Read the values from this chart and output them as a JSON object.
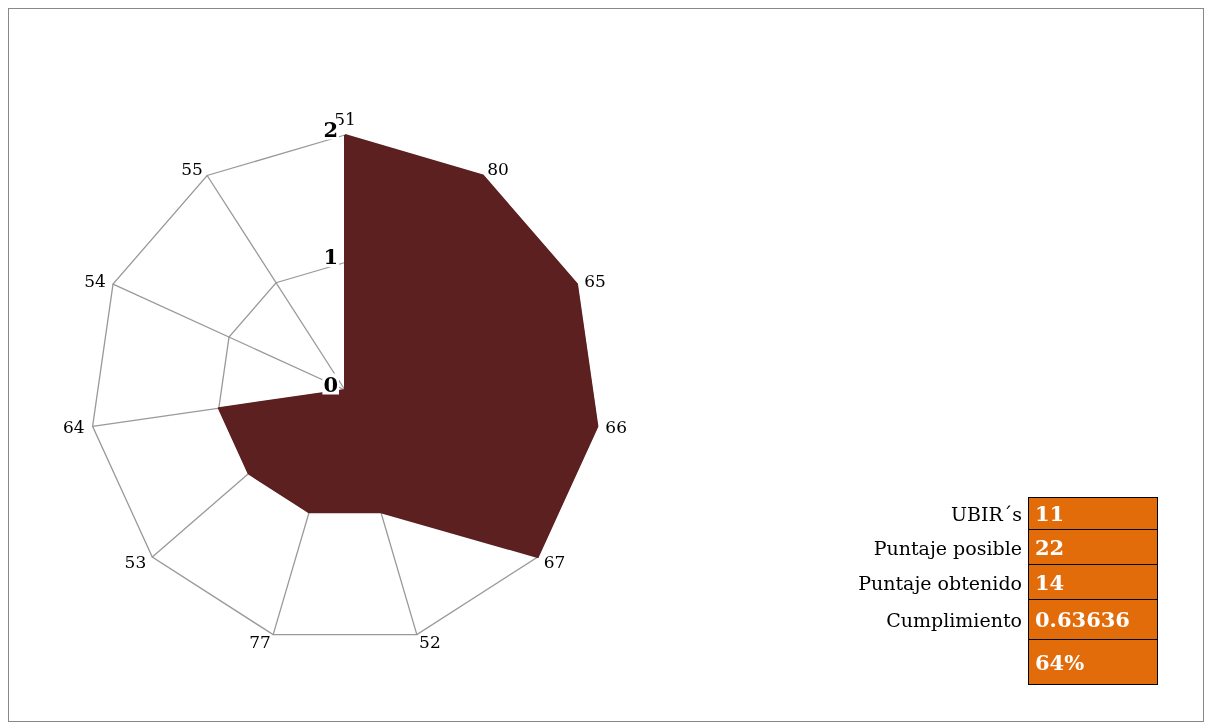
{
  "chart_data": [
    {
      "type": "radar",
      "categories": [
        "51",
        "80",
        "65",
        "66",
        "67",
        "52",
        "77",
        "53",
        "64",
        "54",
        "55"
      ],
      "ylim": [
        0,
        2
      ],
      "yticks": [
        0,
        1,
        2
      ],
      "series": [
        {
          "color": "#5c2020",
          "values": [
            2,
            2,
            2,
            2,
            2,
            1,
            1,
            1,
            1,
            0,
            0
          ]
        }
      ]
    },
    {
      "type": "other",
      "categories": [
        "UBIR´s",
        "Puntaje posible",
        "Puntaje obtenido",
        "Cumplimiento",
        null
      ],
      "value_labels": [
        "11",
        "22",
        "14",
        "0.63636",
        "64%"
      ],
      "color": "#e36c0a"
    }
  ]
}
